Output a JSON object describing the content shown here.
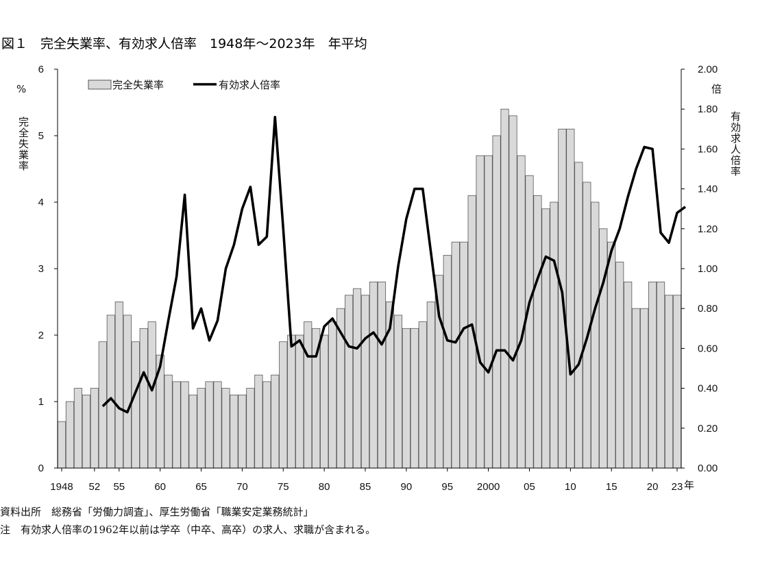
{
  "header": {
    "title": "図１　完全失業率、有効求人倍率　1948年～2023年　年平均"
  },
  "notes": {
    "source": "資料出所　総務省「労働力調査」、厚生労働省「職業安定業務統計」",
    "note": "注　有効求人倍率の1962年以前は学卒（中卒、高卒）の求人、求職が含まれる。"
  },
  "chart_data": {
    "type": "bar",
    "title": "図１　完全失業率、有効求人倍率　1948年～2023年　年平均",
    "legend_placement": "top-left",
    "grid": false,
    "xlabel": "年",
    "y_left": {
      "label": "完全失業率",
      "unit": "%",
      "range": [
        0,
        6
      ],
      "ticks": [
        "0",
        "1",
        "2",
        "3",
        "4",
        "5",
        "6"
      ]
    },
    "y_right": {
      "label": "有効求人倍率",
      "unit": "倍",
      "range": [
        0,
        2
      ],
      "ticks": [
        "0.00",
        "0.20",
        "0.40",
        "0.60",
        "0.80",
        "1.00",
        "1.20",
        "1.40",
        "1.60",
        "1.80",
        "2.00"
      ]
    },
    "x_ticks": [
      {
        "year": 1948,
        "label": "1948"
      },
      {
        "year": 1952,
        "label": "52"
      },
      {
        "year": 1955,
        "label": "55"
      },
      {
        "year": 1960,
        "label": "60"
      },
      {
        "year": 1965,
        "label": "65"
      },
      {
        "year": 1970,
        "label": "70"
      },
      {
        "year": 1975,
        "label": "75"
      },
      {
        "year": 1980,
        "label": "80"
      },
      {
        "year": 1985,
        "label": "85"
      },
      {
        "year": 1990,
        "label": "90"
      },
      {
        "year": 1995,
        "label": "95"
      },
      {
        "year": 2000,
        "label": "2000"
      },
      {
        "year": 2005,
        "label": "05"
      },
      {
        "year": 2010,
        "label": "10"
      },
      {
        "year": 2015,
        "label": "15"
      },
      {
        "year": 2020,
        "label": "20"
      },
      {
        "year": 2023,
        "label": "23"
      }
    ],
    "colors": {
      "bar_fill": "#d9d9d9",
      "bar_stroke": "#555555",
      "line": "#000000"
    },
    "series": [
      {
        "name": "完全失業率",
        "type": "bar",
        "axis": "left",
        "start_year": 1948,
        "values": [
          0.7,
          1.0,
          1.2,
          1.1,
          1.2,
          1.9,
          2.3,
          2.5,
          2.3,
          1.9,
          2.1,
          2.2,
          1.7,
          1.4,
          1.3,
          1.3,
          1.1,
          1.2,
          1.3,
          1.3,
          1.2,
          1.1,
          1.1,
          1.2,
          1.4,
          1.3,
          1.4,
          1.9,
          2.0,
          2.0,
          2.2,
          2.1,
          2.0,
          2.2,
          2.4,
          2.6,
          2.7,
          2.6,
          2.8,
          2.8,
          2.5,
          2.3,
          2.1,
          2.1,
          2.2,
          2.5,
          2.9,
          3.2,
          3.4,
          3.4,
          4.1,
          4.7,
          4.7,
          5.0,
          5.4,
          5.3,
          4.7,
          4.4,
          4.1,
          3.9,
          4.0,
          5.1,
          5.1,
          4.6,
          4.3,
          4.0,
          3.6,
          3.4,
          3.1,
          2.8,
          2.4,
          2.4,
          2.8,
          2.8,
          2.6,
          2.6
        ]
      },
      {
        "name": "有効求人倍率",
        "type": "line",
        "axis": "right",
        "start_year": 1953,
        "values": [
          0.31,
          0.35,
          0.3,
          0.28,
          0.38,
          0.48,
          0.39,
          0.51,
          0.74,
          0.96,
          1.37,
          0.7,
          0.8,
          0.64,
          0.74,
          1.0,
          1.12,
          1.3,
          1.41,
          1.12,
          1.16,
          1.76,
          1.2,
          0.61,
          0.64,
          0.56,
          0.56,
          0.71,
          0.75,
          0.68,
          0.61,
          0.6,
          0.65,
          0.68,
          0.62,
          0.7,
          1.01,
          1.25,
          1.4,
          1.4,
          1.08,
          0.76,
          0.64,
          0.63,
          0.7,
          0.72,
          0.53,
          0.48,
          0.59,
          0.59,
          0.54,
          0.64,
          0.83,
          0.95,
          1.06,
          1.04,
          0.88,
          0.47,
          0.52,
          0.65,
          0.8,
          0.93,
          1.09,
          1.2,
          1.36,
          1.5,
          1.61,
          1.6,
          1.18,
          1.13,
          1.28,
          1.31
        ]
      }
    ]
  }
}
